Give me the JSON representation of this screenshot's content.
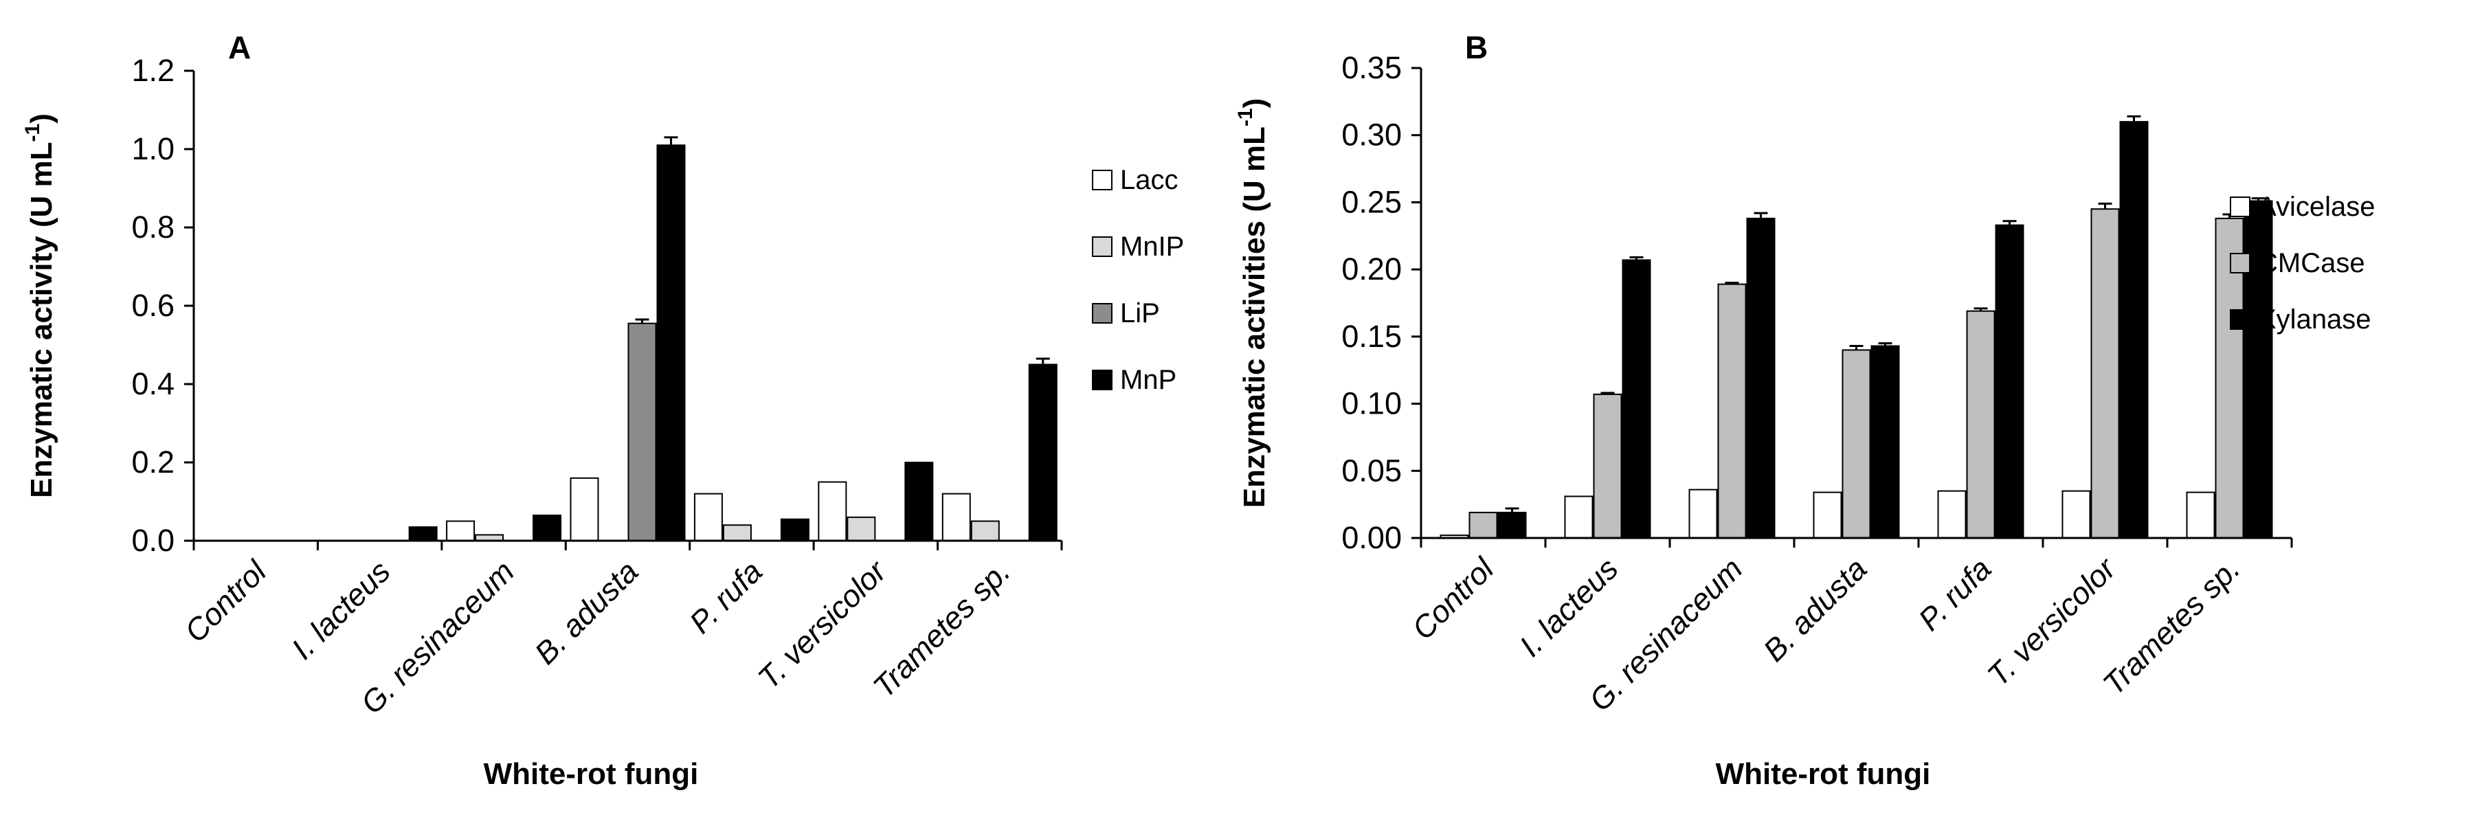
{
  "chart_data": [
    {
      "type": "bar",
      "panel_label": "A",
      "title": "",
      "xlabel": "White-rot fungi",
      "ylabel": "Enzymatic activity (U mL",
      "ylabel_sup": "-1",
      "ylabel_close": ")",
      "ylim": [
        0,
        1.2
      ],
      "yticks": [
        0,
        0.2,
        0.4,
        0.6,
        0.8,
        1.0,
        1.2
      ],
      "ytick_labels": [
        "0.0",
        "0.2",
        "0.4",
        "0.6",
        "0.8",
        "1.0",
        "1.2"
      ],
      "categories": [
        "Control",
        "I. lacteus",
        "G. resinaceum",
        "B. adusta",
        "P. rufa",
        "T. versicolor",
        "Trametes sp."
      ],
      "legend_position": "right",
      "series": [
        {
          "name": "Lacc",
          "color": "#ffffff",
          "values": [
            0.0,
            0.0,
            0.05,
            0.16,
            0.12,
            0.15,
            0.12
          ],
          "errors": [
            0,
            0,
            0,
            0,
            0,
            0,
            0
          ]
        },
        {
          "name": "MnIP",
          "color": "#d9d9d9",
          "values": [
            0.0,
            0.0,
            0.015,
            0.0,
            0.04,
            0.06,
            0.05
          ],
          "errors": [
            0,
            0,
            0,
            0,
            0,
            0,
            0
          ]
        },
        {
          "name": "LiP",
          "color": "#8c8c8c",
          "values": [
            0.0,
            0.0,
            0.0,
            0.555,
            0.0,
            0.0,
            0.0
          ],
          "errors": [
            0,
            0,
            0,
            0.01,
            0,
            0,
            0
          ]
        },
        {
          "name": "MnP",
          "color": "#000000",
          "values": [
            0.0,
            0.035,
            0.065,
            1.01,
            0.055,
            0.2,
            0.45
          ],
          "errors": [
            0,
            0,
            0,
            0.02,
            0,
            0,
            0.015
          ]
        }
      ]
    },
    {
      "type": "bar",
      "panel_label": "B",
      "title": "",
      "xlabel": "White-rot fungi",
      "ylabel": "Enzymatic activities (U mL",
      "ylabel_sup": "-1",
      "ylabel_close": ")",
      "ylim": [
        0,
        0.35
      ],
      "yticks": [
        0,
        0.05,
        0.1,
        0.15,
        0.2,
        0.25,
        0.3,
        0.35
      ],
      "ytick_labels": [
        "0.00",
        "0.05",
        "0.10",
        "0.15",
        "0.20",
        "0.25",
        "0.30",
        "0.35"
      ],
      "categories": [
        "Control",
        "I. lacteus",
        "G. resinaceum",
        "B. adusta",
        "P. rufa",
        "T. versicolor",
        "Trametes sp."
      ],
      "legend_position": "right",
      "series": [
        {
          "name": "Avicelase",
          "color": "#ffffff",
          "values": [
            0.002,
            0.031,
            0.036,
            0.034,
            0.035,
            0.035,
            0.034
          ],
          "errors": [
            0,
            0,
            0,
            0,
            0,
            0,
            0
          ]
        },
        {
          "name": "CMCase",
          "color": "#bfbfbf",
          "values": [
            0.019,
            0.107,
            0.189,
            0.14,
            0.169,
            0.245,
            0.238
          ],
          "errors": [
            0,
            0.001,
            0.001,
            0.003,
            0.002,
            0.004,
            0.003
          ]
        },
        {
          "name": "Xylanase",
          "color": "#000000",
          "values": [
            0.019,
            0.207,
            0.238,
            0.143,
            0.233,
            0.31,
            0.251
          ],
          "errors": [
            0.003,
            0.002,
            0.004,
            0.002,
            0.003,
            0.004,
            0.002
          ]
        }
      ]
    }
  ]
}
